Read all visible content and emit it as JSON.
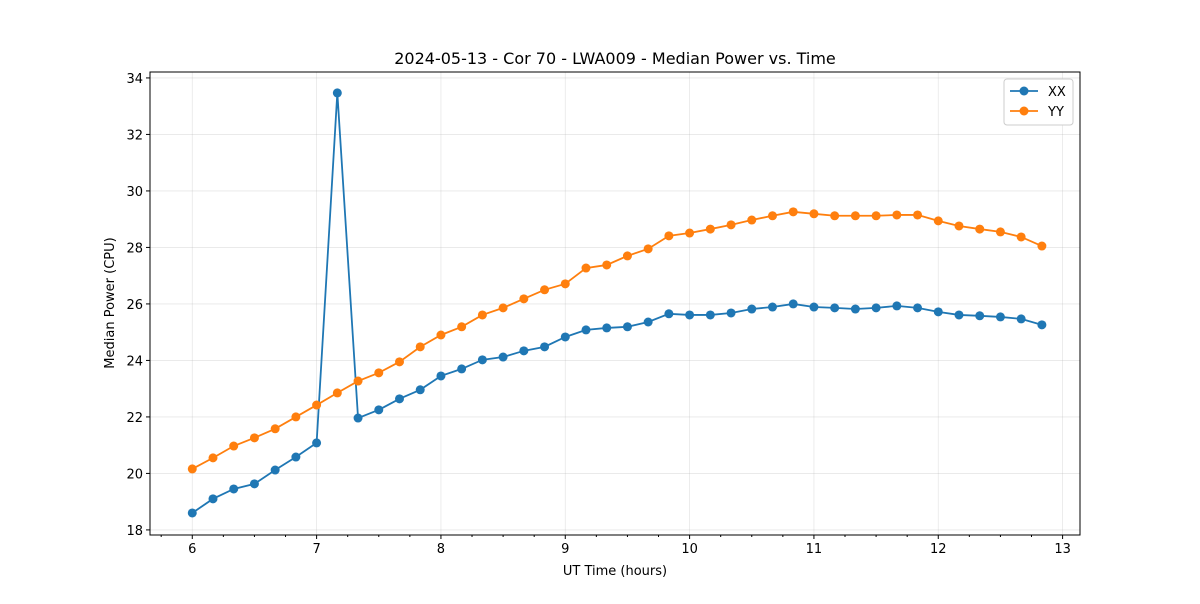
{
  "chart_data": {
    "type": "line",
    "title": "2024-05-13 - Cor 70 - LWA009 - Median Power vs. Time",
    "xlabel": "UT Time (hours)",
    "ylabel": "Median Power (CPU)",
    "xlim": [
      5.66,
      13.14
    ],
    "ylim": [
      17.82,
      34.21
    ],
    "xticks": [
      6,
      7,
      8,
      9,
      10,
      11,
      12,
      13
    ],
    "yticks": [
      18,
      20,
      22,
      24,
      26,
      28,
      30,
      32,
      34
    ],
    "grid": true,
    "legend_position": "top-right",
    "x_start": 6,
    "x_step_hours": 0.16667,
    "series": [
      {
        "name": "XX",
        "color": "#1f77b4",
        "values": [
          18.6,
          19.1,
          19.45,
          19.63,
          20.12,
          20.58,
          21.08,
          33.47,
          21.96,
          22.25,
          22.64,
          22.96,
          23.45,
          23.7,
          24.02,
          24.12,
          24.34,
          24.48,
          24.83,
          25.08,
          25.15,
          25.19,
          25.36,
          25.65,
          25.61,
          25.61,
          25.68,
          25.82,
          25.89,
          26.0,
          25.89,
          25.86,
          25.82,
          25.86,
          25.93,
          25.86,
          25.72,
          25.61,
          25.58,
          25.54,
          25.47,
          25.26
        ]
      },
      {
        "name": "YY",
        "color": "#ff7f0e",
        "values": [
          20.16,
          20.55,
          20.97,
          21.26,
          21.58,
          22.0,
          22.42,
          22.85,
          23.27,
          23.56,
          23.95,
          24.48,
          24.9,
          25.19,
          25.61,
          25.86,
          26.18,
          26.5,
          26.71,
          27.27,
          27.38,
          27.7,
          27.95,
          28.41,
          28.51,
          28.65,
          28.8,
          28.97,
          29.12,
          29.26,
          29.19,
          29.12,
          29.12,
          29.12,
          29.15,
          29.15,
          28.94,
          28.76,
          28.65,
          28.55,
          28.37,
          28.05
        ]
      }
    ]
  }
}
